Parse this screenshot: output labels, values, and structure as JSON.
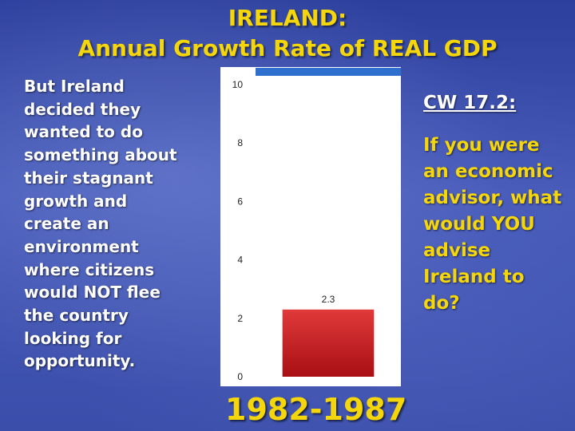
{
  "title": {
    "line1": "IRELAND:",
    "line2": "Annual Growth Rate of REAL GDP"
  },
  "left_text": "But Ireland decided they wanted to do something about their stagnant growth and create an environment where citizens would NOT flee the country looking for opportunity.",
  "right": {
    "cw_label": "CW 17.2:",
    "question": "If you were an economic advisor, what would YOU advise Ireland to do?"
  },
  "period_label": "1982-1987",
  "colors": {
    "title": "#f5d60a",
    "bar_top": "#e03a3a",
    "bar_bottom": "#a80f14",
    "top_line": "#2f6fce"
  },
  "chart_data": {
    "type": "bar",
    "categories": [
      "1982-1987"
    ],
    "values": [
      2.3
    ],
    "data_labels": [
      "2.3"
    ],
    "title": "",
    "xlabel": "",
    "ylabel": "",
    "ylim": [
      0,
      10
    ],
    "yticks": [
      0,
      2,
      4,
      6,
      8,
      10
    ],
    "grid": false
  }
}
